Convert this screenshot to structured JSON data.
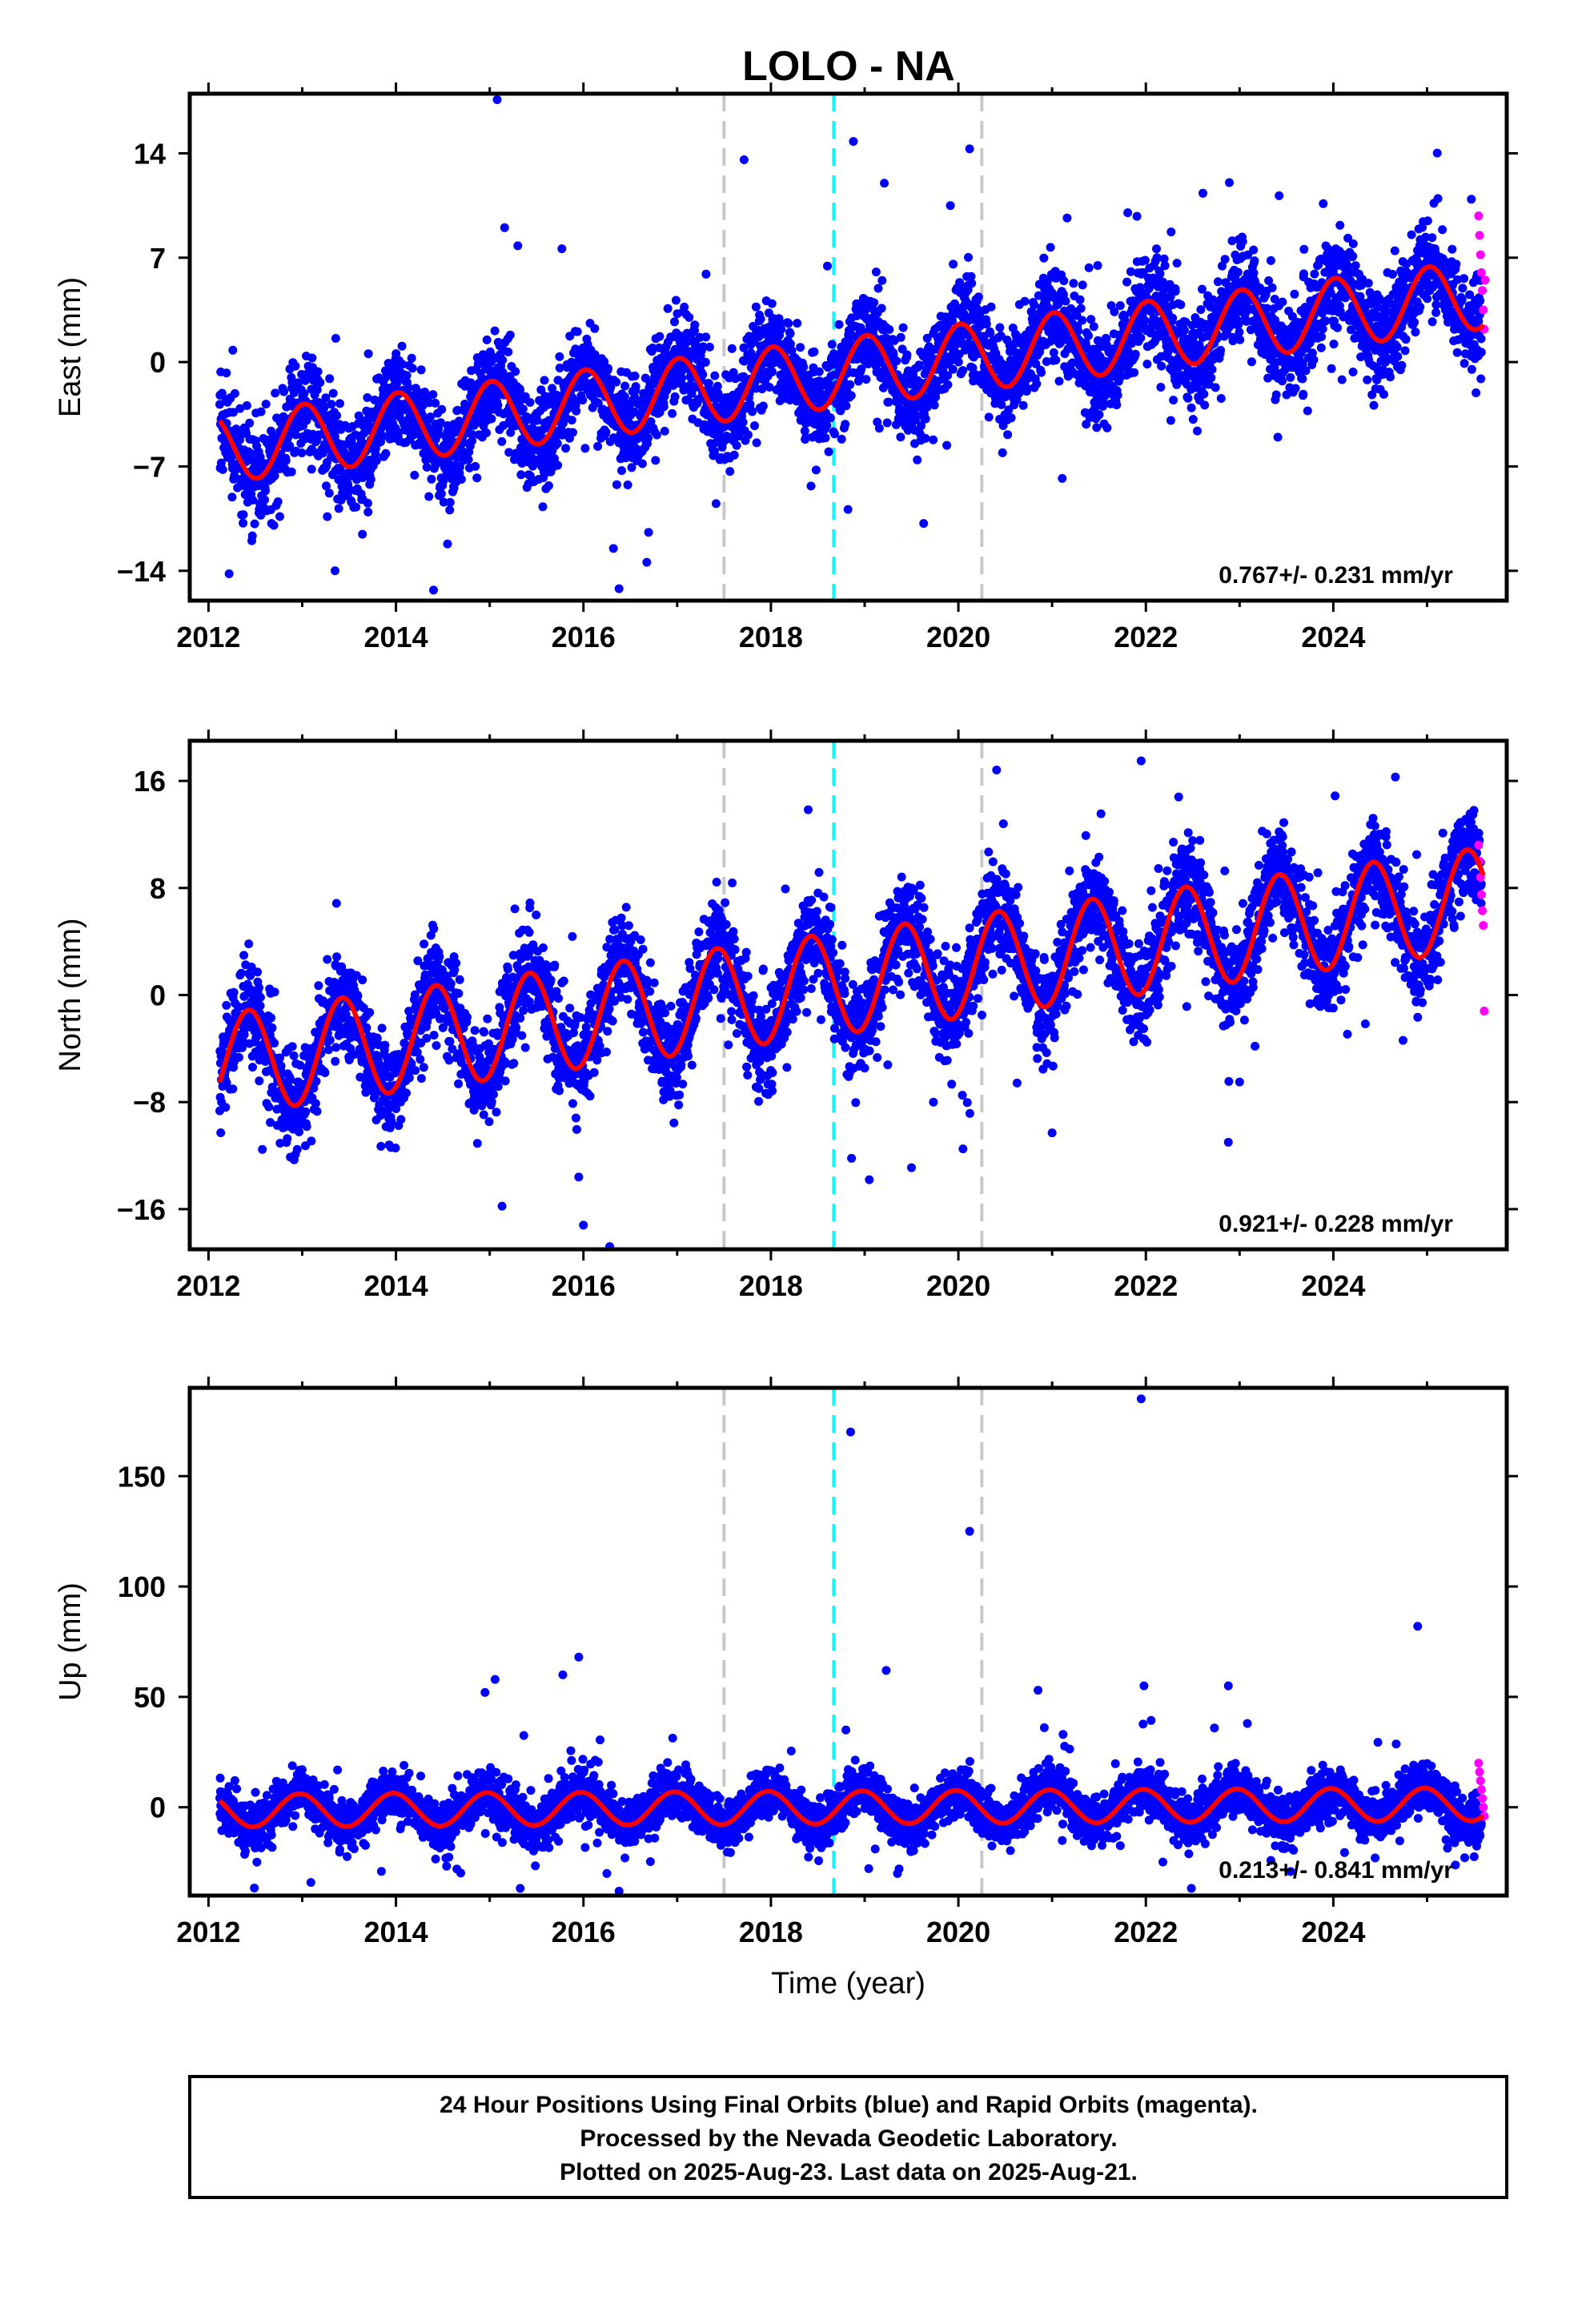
{
  "colors": {
    "final_orbits": "#0000ff",
    "rapid_orbits": "#ff00ff",
    "model_fit": "#ff0000",
    "equipment_change": "#c8c8c8",
    "earthquake": "#00ffff",
    "frame": "#000000"
  },
  "caption": {
    "line1": "24 Hour Positions Using Final Orbits (blue) and Rapid Orbits (magenta).",
    "line2": "Processed by the Nevada Geodetic Laboratory.",
    "line3": "Plotted on 2025-Aug-23. Last data on 2025-Aug-21."
  },
  "chart_data": [
    {
      "type": "scatter",
      "title": "LOLO - NA",
      "xlabel": "",
      "ylabel": "East (mm)",
      "xlim": [
        2011.8,
        2025.85
      ],
      "ylim": [
        -16,
        18
      ],
      "xticks": [
        2012,
        2014,
        2016,
        2018,
        2020,
        2022,
        2024
      ],
      "yticks": [
        -14,
        -7,
        0,
        7,
        14
      ],
      "grid": false,
      "rate": "0.767+/- 0.231 mm/yr",
      "vlines_gray": [
        2017.5,
        2020.25
      ],
      "vline_cyan": 2018.67,
      "model": {
        "start": 2012.12,
        "end": 2025.6,
        "intercept": -5.8,
        "slope": 0.767,
        "amplitude": 2.3,
        "phase": 2.2
      },
      "scatter_sd": 1.6,
      "outliers": [
        {
          "x": 2015.08,
          "y": 17.6
        },
        {
          "x": 2018.88,
          "y": 14.8
        },
        {
          "x": 2020.12,
          "y": 14.3
        },
        {
          "x": 2019.21,
          "y": 12.0
        },
        {
          "x": 2015.3,
          "y": 7.8
        },
        {
          "x": 2015.77,
          "y": 7.6
        },
        {
          "x": 2016.38,
          "y": -15.2
        },
        {
          "x": 2016.32,
          "y": -12.5
        },
        {
          "x": 2012.22,
          "y": -14.2
        },
        {
          "x": 2013.35,
          "y": -14.0
        },
        {
          "x": 2014.55,
          "y": -12.2
        }
      ],
      "rapid": [
        {
          "x": 2025.55,
          "y": 9.8
        },
        {
          "x": 2025.56,
          "y": 8.5
        },
        {
          "x": 2025.57,
          "y": 7.2
        },
        {
          "x": 2025.58,
          "y": 6.0
        },
        {
          "x": 2025.59,
          "y": 4.8
        },
        {
          "x": 2025.6,
          "y": 3.5
        },
        {
          "x": 2025.61,
          "y": 2.2
        },
        {
          "x": 2025.62,
          "y": 5.5
        }
      ]
    },
    {
      "type": "scatter",
      "xlabel": "",
      "ylabel": "North (mm)",
      "xlim": [
        2011.8,
        2025.85
      ],
      "ylim": [
        -19,
        19
      ],
      "xticks": [
        2012,
        2014,
        2016,
        2018,
        2020,
        2022,
        2024
      ],
      "yticks": [
        -16,
        -8,
        0,
        8,
        16
      ],
      "grid": false,
      "rate": "0.921+/- 0.228 mm/yr",
      "vlines_gray": [
        2017.5,
        2020.25
      ],
      "vline_cyan": 2018.67,
      "model": {
        "start": 2012.12,
        "end": 2025.6,
        "intercept": -5.2,
        "slope": 0.921,
        "amplitude": 3.8,
        "phase": -0.35
      },
      "scatter_sd": 1.8,
      "outliers": [
        {
          "x": 2021.95,
          "y": 17.5
        },
        {
          "x": 2022.35,
          "y": 14.8
        },
        {
          "x": 2020.48,
          "y": 12.8
        },
        {
          "x": 2016.28,
          "y": -18.8
        },
        {
          "x": 2016.0,
          "y": -17.2
        },
        {
          "x": 2015.95,
          "y": -13.6
        },
        {
          "x": 2019.05,
          "y": -13.8
        },
        {
          "x": 2019.5,
          "y": -12.9
        },
        {
          "x": 2018.86,
          "y": -12.2
        },
        {
          "x": 2021.0,
          "y": -10.3
        },
        {
          "x": 2022.88,
          "y": -11.0
        },
        {
          "x": 2023.0,
          "y": -6.5
        }
      ],
      "rapid": [
        {
          "x": 2025.55,
          "y": 11.2
        },
        {
          "x": 2025.56,
          "y": 10.0
        },
        {
          "x": 2025.57,
          "y": 8.8
        },
        {
          "x": 2025.58,
          "y": 7.5
        },
        {
          "x": 2025.59,
          "y": 6.3
        },
        {
          "x": 2025.6,
          "y": 5.2
        },
        {
          "x": 2025.61,
          "y": -1.2
        }
      ]
    },
    {
      "type": "scatter",
      "xlabel": "Time (year)",
      "ylabel": "Up (mm)",
      "xlim": [
        2011.8,
        2025.85
      ],
      "ylim": [
        -40,
        190
      ],
      "xticks": [
        2012,
        2014,
        2016,
        2018,
        2020,
        2022,
        2024
      ],
      "yticks": [
        0,
        50,
        100,
        150
      ],
      "grid": false,
      "rate": "0.213+/- 0.841 mm/yr",
      "vlines_gray": [
        2017.5,
        2020.25
      ],
      "vline_cyan": 2018.67,
      "model": {
        "start": 2012.12,
        "end": 2025.6,
        "intercept": -1.5,
        "slope": 0.213,
        "amplitude": 7.5,
        "phase": 2.5
      },
      "scatter_sd": 5.5,
      "outliers": [
        {
          "x": 2021.95,
          "y": 185
        },
        {
          "x": 2018.85,
          "y": 170
        },
        {
          "x": 2020.12,
          "y": 125
        },
        {
          "x": 2024.9,
          "y": 82
        },
        {
          "x": 2015.95,
          "y": 68
        },
        {
          "x": 2015.78,
          "y": 60
        },
        {
          "x": 2019.23,
          "y": 62
        },
        {
          "x": 2014.95,
          "y": 52
        },
        {
          "x": 2021.98,
          "y": 55
        },
        {
          "x": 2022.88,
          "y": 55
        },
        {
          "x": 2020.85,
          "y": 53
        },
        {
          "x": 2016.38,
          "y": -38
        },
        {
          "x": 2016.25,
          "y": -30
        },
        {
          "x": 2019.35,
          "y": -30
        },
        {
          "x": 2018.8,
          "y": 35
        }
      ],
      "rapid": [
        {
          "x": 2025.55,
          "y": 20
        },
        {
          "x": 2025.56,
          "y": 16
        },
        {
          "x": 2025.57,
          "y": 12
        },
        {
          "x": 2025.58,
          "y": 8
        },
        {
          "x": 2025.59,
          "y": 4
        },
        {
          "x": 2025.6,
          "y": 0
        },
        {
          "x": 2025.61,
          "y": -4
        }
      ]
    }
  ]
}
